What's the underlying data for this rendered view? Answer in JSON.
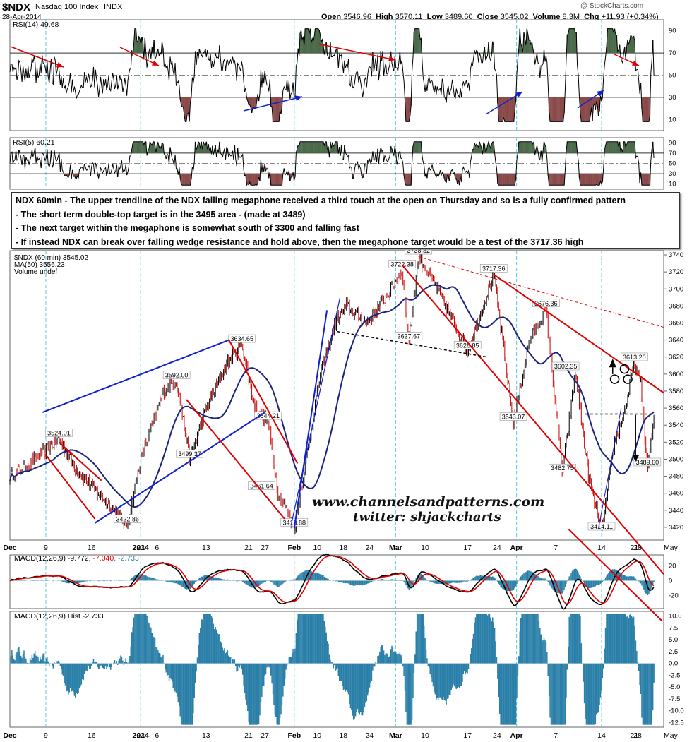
{
  "header": {
    "symbol": "$NDX",
    "name": "Nasdaq 100 Index",
    "exchange": "INDX",
    "date": "28-Apr-2014",
    "brand": "@ StockCharts.com",
    "open_label": "Open",
    "open": "3546.96",
    "high_label": "High",
    "high": "3570.11",
    "low_label": "Low",
    "low": "3489.60",
    "close_label": "Close",
    "close": "3545.02",
    "volume_label": "Volume",
    "volume": "8.3M",
    "chg_label": "Chg",
    "chg": "+11.93 (+0.34%)"
  },
  "annotation": {
    "lines": [
      "NDX 60min - The upper trendline of the NDX falling megaphone received a third touch at the open on Thursday and so is a fully confirmed pattern",
      "- The short term double-top target is in the 3495 area - (made at 3489)",
      "- The next target within the megaphone is somewhat south of 3300 and falling fast",
      "- If instead NDX can break over falling wedge resistance and hold above, then the megaphone target would be a test of the 3717.36 high"
    ]
  },
  "watermark": {
    "line1": "www.channelsandpatterns.com",
    "line2": "twitter: shjackcharts"
  },
  "colors": {
    "price_up": "#000000",
    "price_down": "#cc0000",
    "ma": "#1a237e",
    "trend_red": "#e00000",
    "trend_blue": "#1020d0",
    "vline": "#5bc8dc",
    "macd_line": "#000000",
    "signal_line": "#e00000",
    "hist": "#2a7fa8",
    "ob_fill": "#4a6a4a",
    "os_fill": "#8a4a4a"
  },
  "chart_data": [
    {
      "id": "rsi14",
      "type": "line",
      "title": "RSI(14) 49.68",
      "y_ticks": [
        10,
        30,
        50,
        70,
        90
      ],
      "ylim": [
        0,
        100
      ],
      "levels": [
        30,
        50,
        70
      ],
      "last": 49.68
    },
    {
      "id": "rsi5",
      "type": "line",
      "title": "RSI(5) 60.21",
      "y_ticks": [
        10,
        30,
        50,
        70,
        90
      ],
      "ylim": [
        0,
        100
      ],
      "levels": [
        30,
        50,
        70
      ],
      "last": 60.21
    },
    {
      "id": "price",
      "type": "line",
      "legend": [
        "$NDX (60 min) 3545.02",
        "MA(50) 3556.23",
        "Volume undef"
      ],
      "y_ticks": [
        3420,
        3440,
        3460,
        3480,
        3500,
        3520,
        3540,
        3560,
        3580,
        3600,
        3620,
        3640,
        3660,
        3680,
        3700,
        3720,
        3740
      ],
      "ylim": [
        3405,
        3745
      ],
      "x_labels": [
        "Dec",
        "9",
        "16",
        "23",
        "2014",
        "6",
        "13",
        "21",
        "27",
        "Feb",
        "10",
        "18",
        "24",
        "Mar",
        "10",
        "17",
        "24",
        "Apr",
        "7",
        "14",
        "21",
        "28",
        "May"
      ],
      "x_label_bold": [
        "Dec",
        "2014",
        "Feb",
        "Mar",
        "Apr"
      ],
      "price_labels": [
        {
          "t": 0.075,
          "p": 3524.01,
          "label": "3524.01"
        },
        {
          "t": 0.18,
          "p": 3422.86,
          "label": "3422.86"
        },
        {
          "t": 0.255,
          "p": 3592.0,
          "label": "3592.00"
        },
        {
          "t": 0.275,
          "p": 3499.37,
          "label": "3499.37"
        },
        {
          "t": 0.355,
          "p": 3634.65,
          "label": "3634.65"
        },
        {
          "t": 0.395,
          "p": 3544.21,
          "label": "3544.21"
        },
        {
          "t": 0.385,
          "p": 3461.64,
          "label": "3461.64"
        },
        {
          "t": 0.435,
          "p": 3418.88,
          "label": "3418.88"
        },
        {
          "t": 0.6,
          "p": 3722.38,
          "label": "3722.38"
        },
        {
          "t": 0.625,
          "p": 3738.32,
          "label": "3738.32"
        },
        {
          "t": 0.61,
          "p": 3637.67,
          "label": "3637.67"
        },
        {
          "t": 0.7,
          "p": 3626.85,
          "label": "3626.85"
        },
        {
          "t": 0.74,
          "p": 3717.36,
          "label": "3717.36"
        },
        {
          "t": 0.77,
          "p": 3543.07,
          "label": "3543.07"
        },
        {
          "t": 0.82,
          "p": 3676.36,
          "label": "3676.36"
        },
        {
          "t": 0.85,
          "p": 3602.35,
          "label": "3602.35"
        },
        {
          "t": 0.845,
          "p": 3482.75,
          "label": "3482.75"
        },
        {
          "t": 0.905,
          "p": 3414.11,
          "label": "3414.11"
        },
        {
          "t": 0.955,
          "p": 3613.2,
          "label": "3613.20"
        },
        {
          "t": 0.975,
          "p": 3489.6,
          "label": "3489.60"
        }
      ],
      "last": 3545.02,
      "ma50": 3556.23
    },
    {
      "id": "macd",
      "type": "line",
      "title": "MACD(12,26,9)",
      "values_text": [
        "-9.772",
        "-7.040",
        "-2.733"
      ],
      "y_ticks": [
        -20,
        0,
        20
      ],
      "ylim": [
        -38,
        35
      ]
    },
    {
      "id": "hist",
      "type": "bar",
      "title": "MACD(12,26,9) Hist -2.733",
      "y_ticks": [
        -12.5,
        -10.0,
        -7.5,
        -5.0,
        -2.5,
        0.0,
        2.5,
        5.0,
        7.5,
        10.0
      ],
      "y_tick_labels": [
        "-12.5",
        "-10.0",
        "-7.5",
        "-5.0",
        "-2.5",
        "0.0",
        "2.5",
        "5.0",
        "7.5",
        "10.0"
      ],
      "ylim": [
        -13.5,
        11
      ],
      "x_labels": [
        "Dec",
        "9",
        "16",
        "23",
        "2014",
        "6",
        "13",
        "21",
        "27",
        "Feb",
        "10",
        "18",
        "24",
        "Mar",
        "10",
        "17",
        "24",
        "Apr",
        "7",
        "14",
        "21",
        "28",
        "May"
      ]
    }
  ]
}
